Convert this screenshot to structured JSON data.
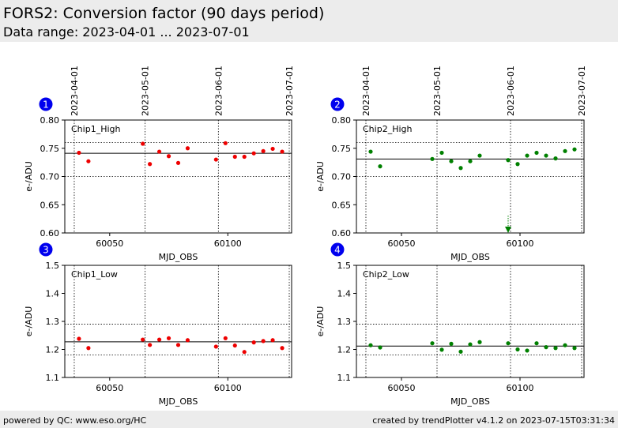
{
  "header": {
    "title": "FORS2: Conversion factor (90 days period)",
    "subtitle": "Data range: 2023-04-01 ... 2023-07-01"
  },
  "footer": {
    "left": "powered by QC: www.eso.org/HC",
    "right": "created by trendPlotter v4.1.2 on 2023-07-15T03:31:34"
  },
  "colors": {
    "red_series": "#ee0000",
    "green_series": "#008000",
    "badge": "#0000ee"
  },
  "chart_data": [
    {
      "type": "scatter",
      "panel_number": "1",
      "label": "Chip1_High",
      "color": "#ee0000",
      "xlabel": "MJD_OBS",
      "ylabel": "e-/ADU",
      "xlim": [
        60031,
        60127
      ],
      "ylim": [
        0.6,
        0.8
      ],
      "xticks": [
        60050,
        60100
      ],
      "yticks": [
        0.6,
        0.65,
        0.7,
        0.75,
        0.8
      ],
      "ytick_labels": [
        "0.60",
        "0.65",
        "0.70",
        "0.75",
        "0.80"
      ],
      "date_markers": [
        {
          "mjd": 60035,
          "label": "2023-04-01"
        },
        {
          "mjd": 60065,
          "label": "2023-05-01"
        },
        {
          "mjd": 60096,
          "label": "2023-06-01"
        },
        {
          "mjd": 60126,
          "label": "2023-07-01"
        }
      ],
      "ref_line": 0.741,
      "dotted_lines": [
        0.76,
        0.7
      ],
      "points": {
        "x": [
          60037,
          60041,
          60064,
          60067,
          60071,
          60075,
          60079,
          60083,
          60095,
          60099,
          60103,
          60107,
          60111,
          60115,
          60119,
          60123
        ],
        "y": [
          0.742,
          0.727,
          0.758,
          0.722,
          0.744,
          0.736,
          0.724,
          0.75,
          0.73,
          0.759,
          0.735,
          0.735,
          0.741,
          0.745,
          0.749,
          0.744
        ]
      },
      "outliers": []
    },
    {
      "type": "scatter",
      "panel_number": "2",
      "label": "Chip2_High",
      "color": "#008000",
      "xlabel": "MJD_OBS",
      "ylabel": "e-/ADU",
      "xlim": [
        60031,
        60127
      ],
      "ylim": [
        0.6,
        0.8
      ],
      "xticks": [
        60050,
        60100
      ],
      "yticks": [
        0.6,
        0.65,
        0.7,
        0.75,
        0.8
      ],
      "ytick_labels": [
        "0.60",
        "0.65",
        "0.70",
        "0.75",
        "0.80"
      ],
      "date_markers": [
        {
          "mjd": 60035,
          "label": "2023-04-01"
        },
        {
          "mjd": 60065,
          "label": "2023-05-01"
        },
        {
          "mjd": 60096,
          "label": "2023-06-01"
        },
        {
          "mjd": 60126,
          "label": "2023-07-01"
        }
      ],
      "ref_line": 0.731,
      "dotted_lines": [
        0.76,
        0.7
      ],
      "points": {
        "x": [
          60037,
          60041,
          60063,
          60067,
          60071,
          60075,
          60079,
          60083,
          60095,
          60099,
          60103,
          60107,
          60111,
          60115,
          60119,
          60123
        ],
        "y": [
          0.744,
          0.718,
          0.731,
          0.742,
          0.727,
          0.715,
          0.727,
          0.737,
          0.729,
          0.722,
          0.737,
          0.742,
          0.737,
          0.732,
          0.745,
          0.748
        ]
      },
      "outliers": [
        {
          "x": 60095,
          "y": 0.6
        }
      ]
    },
    {
      "type": "scatter",
      "panel_number": "3",
      "label": "Chip1_Low",
      "color": "#ee0000",
      "xlabel": "MJD_OBS",
      "ylabel": "e-/ADU",
      "xlim": [
        60031,
        60127
      ],
      "ylim": [
        1.1,
        1.5
      ],
      "xticks": [
        60050,
        60100
      ],
      "yticks": [
        1.1,
        1.2,
        1.3,
        1.4,
        1.5
      ],
      "ytick_labels": [
        "1.1",
        "1.2",
        "1.3",
        "1.4",
        "1.5"
      ],
      "date_markers": [
        {
          "mjd": 60035,
          "label": "2023-04-01"
        },
        {
          "mjd": 60065,
          "label": "2023-05-01"
        },
        {
          "mjd": 60096,
          "label": "2023-06-01"
        },
        {
          "mjd": 60126,
          "label": "2023-07-01"
        }
      ],
      "ref_line": 1.227,
      "dotted_lines": [
        1.29,
        1.18
      ],
      "points": {
        "x": [
          60037,
          60041,
          60064,
          60067,
          60071,
          60075,
          60079,
          60083,
          60095,
          60099,
          60103,
          60107,
          60111,
          60115,
          60119,
          60123
        ],
        "y": [
          1.238,
          1.205,
          1.235,
          1.216,
          1.235,
          1.24,
          1.216,
          1.233,
          1.21,
          1.24,
          1.214,
          1.191,
          1.225,
          1.23,
          1.233,
          1.205
        ]
      },
      "outliers": []
    },
    {
      "type": "scatter",
      "panel_number": "4",
      "label": "Chip2_Low",
      "color": "#008000",
      "xlabel": "MJD_OBS",
      "ylabel": "e-/ADU",
      "xlim": [
        60031,
        60127
      ],
      "ylim": [
        1.1,
        1.5
      ],
      "xticks": [
        60050,
        60100
      ],
      "yticks": [
        1.1,
        1.2,
        1.3,
        1.4,
        1.5
      ],
      "ytick_labels": [
        "1.1",
        "1.2",
        "1.3",
        "1.4",
        "1.5"
      ],
      "date_markers": [
        {
          "mjd": 60035,
          "label": "2023-04-01"
        },
        {
          "mjd": 60065,
          "label": "2023-05-01"
        },
        {
          "mjd": 60096,
          "label": "2023-06-01"
        },
        {
          "mjd": 60126,
          "label": "2023-07-01"
        }
      ],
      "ref_line": 1.212,
      "dotted_lines": [
        1.29,
        1.18
      ],
      "points": {
        "x": [
          60037,
          60041,
          60063,
          60067,
          60071,
          60075,
          60079,
          60083,
          60095,
          60099,
          60103,
          60107,
          60111,
          60115,
          60119,
          60123
        ],
        "y": [
          1.215,
          1.207,
          1.222,
          1.199,
          1.22,
          1.192,
          1.218,
          1.226,
          1.222,
          1.2,
          1.196,
          1.222,
          1.208,
          1.205,
          1.215,
          1.205
        ]
      },
      "outliers": []
    }
  ]
}
